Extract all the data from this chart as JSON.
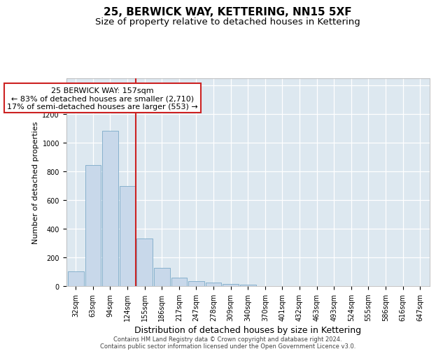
{
  "title": "25, BERWICK WAY, KETTERING, NN15 5XF",
  "subtitle": "Size of property relative to detached houses in Kettering",
  "xlabel": "Distribution of detached houses by size in Kettering",
  "ylabel": "Number of detached properties",
  "footer_line1": "Contains HM Land Registry data © Crown copyright and database right 2024.",
  "footer_line2": "Contains public sector information licensed under the Open Government Licence v3.0.",
  "bar_labels": [
    "32sqm",
    "63sqm",
    "94sqm",
    "124sqm",
    "155sqm",
    "186sqm",
    "217sqm",
    "247sqm",
    "278sqm",
    "309sqm",
    "340sqm",
    "370sqm",
    "401sqm",
    "432sqm",
    "463sqm",
    "493sqm",
    "524sqm",
    "555sqm",
    "586sqm",
    "616sqm",
    "647sqm"
  ],
  "bar_values": [
    100,
    845,
    1080,
    695,
    330,
    125,
    60,
    33,
    25,
    15,
    8,
    0,
    0,
    0,
    0,
    0,
    0,
    0,
    0,
    0,
    0
  ],
  "bar_color": "#c8d8ea",
  "bar_edge_color": "#7baac8",
  "property_bin_index": 4,
  "property_label": "25 BERWICK WAY: 157sqm",
  "annotation_line1": "← 83% of detached houses are smaller (2,710)",
  "annotation_line2": "17% of semi-detached houses are larger (553) →",
  "line_color": "#cc2222",
  "annotation_box_facecolor": "#ffffff",
  "annotation_box_edgecolor": "#cc2222",
  "ylim": [
    0,
    1450
  ],
  "yticks": [
    0,
    200,
    400,
    600,
    800,
    1000,
    1200,
    1400
  ],
  "plot_bg_color": "#dde8f0",
  "fig_bg_color": "#ffffff",
  "grid_color": "#ffffff",
  "title_fontsize": 11,
  "subtitle_fontsize": 9.5,
  "ylabel_fontsize": 8,
  "xlabel_fontsize": 9,
  "tick_fontsize": 7,
  "annotation_fontsize": 8,
  "footer_fontsize": 6
}
